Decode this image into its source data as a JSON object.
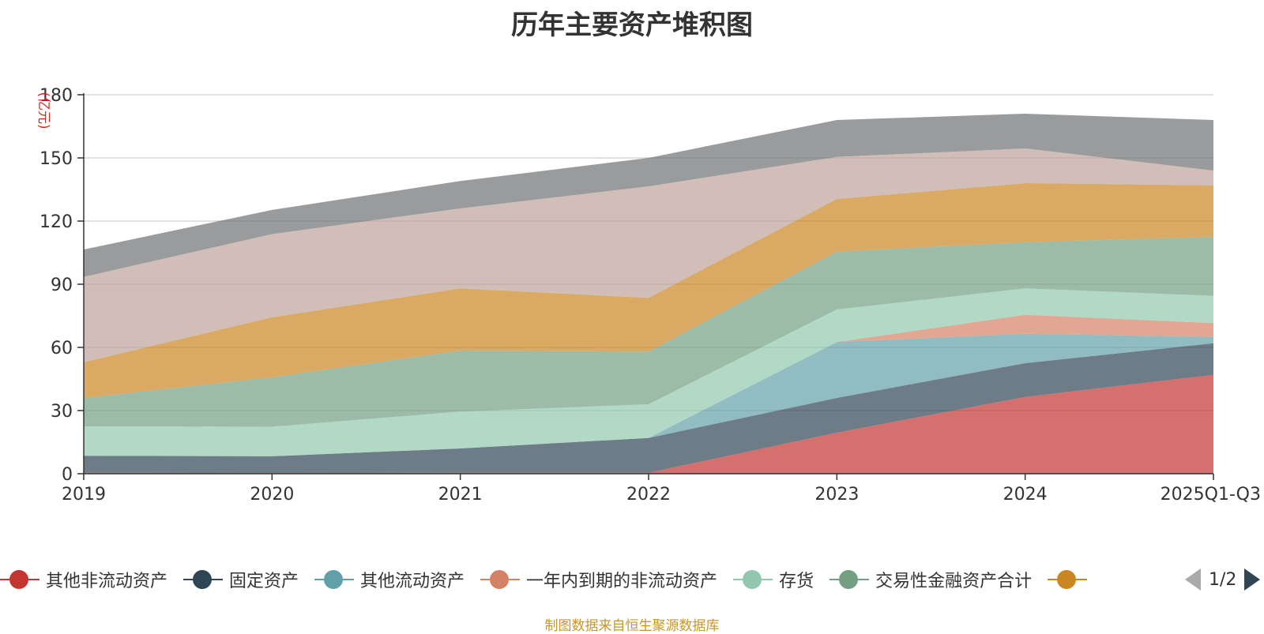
{
  "chart_data": {
    "type": "area",
    "stacked": true,
    "title": "历年主要资产堆积图",
    "ylabel": "(亿元)",
    "xlabel": "",
    "ylim": [
      0,
      180
    ],
    "yticks": [
      0,
      30,
      60,
      90,
      120,
      150,
      180
    ],
    "grid": true,
    "categories": [
      "2019",
      "2020",
      "2021",
      "2022",
      "2023",
      "2024",
      "2025Q1-Q3"
    ],
    "series": [
      {
        "name": "其他非流动资产",
        "color": "#c23531",
        "values": [
          0.5,
          0.3,
          0.5,
          0.5,
          19.5,
          36.5,
          47.0
        ]
      },
      {
        "name": "固定资产",
        "color": "#2f4554",
        "values": [
          8.0,
          8.0,
          11.5,
          16.5,
          16.5,
          16.0,
          15.0
        ]
      },
      {
        "name": "其他流动资产",
        "color": "#61a0a8",
        "values": [
          0,
          0,
          0,
          0,
          26.5,
          14.0,
          3.0
        ]
      },
      {
        "name": "一年内到期的非流动资产",
        "color": "#d48265",
        "values": [
          0,
          0,
          0,
          0,
          0,
          9.0,
          6.5
        ]
      },
      {
        "name": "存货",
        "color": "#91c7ae",
        "values": [
          14.0,
          14.0,
          17.5,
          16.0,
          15.5,
          12.5,
          13.0
        ]
      },
      {
        "name": "交易性金融资产合计",
        "color": "#749f83",
        "values": [
          13.5,
          23.5,
          29.0,
          25.0,
          27.5,
          22.0,
          28.0
        ]
      },
      {
        "name": "",
        "color": "#ca8622",
        "values": [
          17.0,
          28.5,
          29.5,
          25.5,
          25.0,
          28.0,
          24.5
        ]
      },
      {
        "name": "",
        "color": "#bda29a",
        "values": [
          40.5,
          39.5,
          38.0,
          53.0,
          20.0,
          16.5,
          7.0
        ]
      },
      {
        "name": "",
        "color": "#6e7074",
        "values": [
          13.0,
          11.5,
          13.0,
          13.5,
          17.5,
          16.5,
          24.0
        ]
      }
    ]
  },
  "legend": {
    "page_indicator": "1/2"
  },
  "source_note": "制图数据来自恒生聚源数据库"
}
